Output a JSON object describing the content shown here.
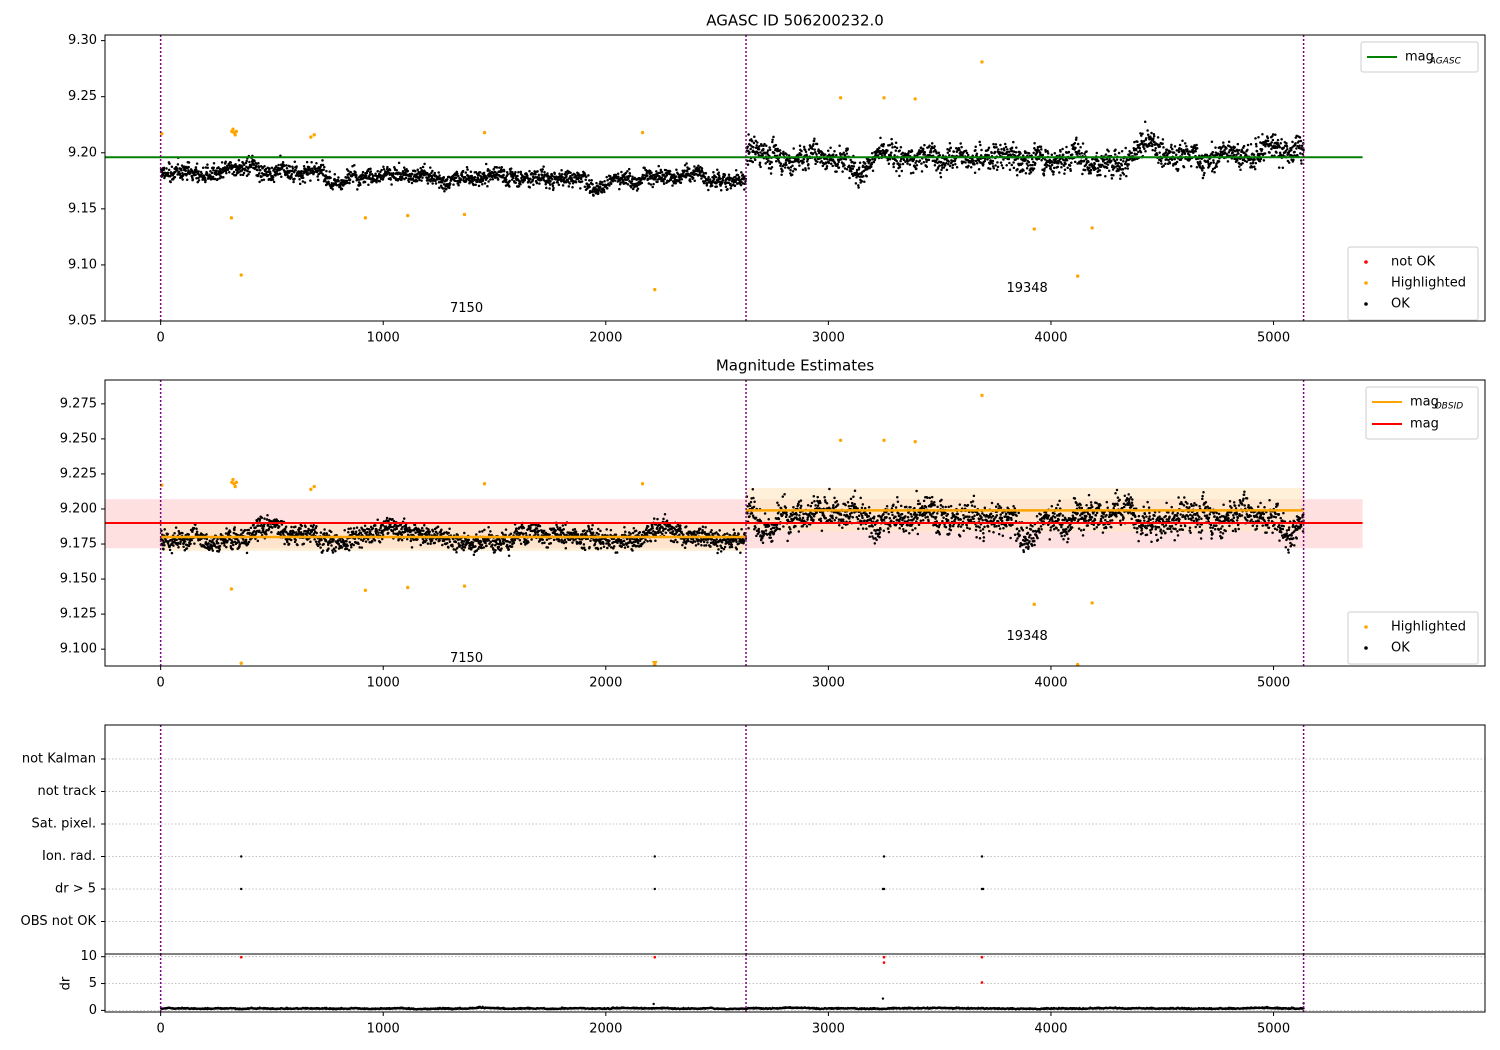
{
  "colors": {
    "agasc_line": "#008000",
    "obsid_line": "#ffa500",
    "mag_line": "#ff0000",
    "mag_band": "#ffcccc",
    "obsid_band": "#ffe6bf",
    "obs_boundary": "#800080",
    "ok": "#000000",
    "highlighted": "#ffa500",
    "not_ok": "#ff0000",
    "grid": "#b0b0b0"
  },
  "chart_data": [
    {
      "type": "scatter",
      "title": "AGASC ID 506200232.0",
      "xlim": [
        -250,
        5950
      ],
      "ylim": [
        9.05,
        9.305
      ],
      "x_ticks": [
        "0",
        "1000",
        "2000",
        "3000",
        "4000",
        "5000"
      ],
      "y_ticks": [
        "9.05",
        "9.10",
        "9.15",
        "9.20",
        "9.25",
        "9.30"
      ],
      "obs_boundaries": [
        0,
        2630,
        5135
      ],
      "observations": [
        {
          "label": "7150",
          "x_start": 0,
          "x_end": 2630,
          "label_x": 1300,
          "label_y": 9.061
        },
        {
          "label": "19348",
          "x_start": 2630,
          "x_end": 5135,
          "label_x": 3800,
          "label_y": 9.079
        }
      ],
      "segments": [
        {
          "x_start": 0,
          "x_end": 2630,
          "mean": 9.181,
          "spread": 0.011
        },
        {
          "x_start": 2630,
          "x_end": 5135,
          "mean": 9.199,
          "spread": 0.017
        }
      ],
      "reference_lines": [
        {
          "name": "mag_AGASC",
          "y": 9.196,
          "x_start": -250,
          "x_end": 5400
        }
      ],
      "highlighted_points": [
        {
          "x": 5,
          "y": 9.217
        },
        {
          "x": 320,
          "y": 9.219
        },
        {
          "x": 325,
          "y": 9.221
        },
        {
          "x": 330,
          "y": 9.218
        },
        {
          "x": 335,
          "y": 9.216
        },
        {
          "x": 340,
          "y": 9.219
        },
        {
          "x": 318,
          "y": 9.142
        },
        {
          "x": 362,
          "y": 9.091
        },
        {
          "x": 675,
          "y": 9.214
        },
        {
          "x": 690,
          "y": 9.216
        },
        {
          "x": 920,
          "y": 9.142
        },
        {
          "x": 1110,
          "y": 9.144
        },
        {
          "x": 1365,
          "y": 9.145
        },
        {
          "x": 1455,
          "y": 9.218
        },
        {
          "x": 2165,
          "y": 9.218
        },
        {
          "x": 2220,
          "y": 9.078
        },
        {
          "x": 3055,
          "y": 9.249
        },
        {
          "x": 3250,
          "y": 9.249
        },
        {
          "x": 3390,
          "y": 9.248
        },
        {
          "x": 3690,
          "y": 9.281
        },
        {
          "x": 3925,
          "y": 9.132
        },
        {
          "x": 4120,
          "y": 9.09
        },
        {
          "x": 4185,
          "y": 9.133
        }
      ],
      "not_ok_points": [],
      "legend_lines": [
        {
          "label": "mag",
          "sub": "AGASC",
          "color_key": "agasc_line"
        }
      ],
      "legend_markers": [
        {
          "label": "not OK",
          "color_key": "not_ok"
        },
        {
          "label": "Highlighted",
          "color_key": "highlighted"
        },
        {
          "label": "OK",
          "color_key": "ok"
        }
      ]
    },
    {
      "type": "scatter",
      "title": "Magnitude Estimates",
      "xlim": [
        -250,
        5950
      ],
      "ylim": [
        9.088,
        9.292
      ],
      "x_ticks": [
        "0",
        "1000",
        "2000",
        "3000",
        "4000",
        "5000"
      ],
      "y_ticks": [
        "9.100",
        "9.125",
        "9.150",
        "9.175",
        "9.200",
        "9.225",
        "9.250",
        "9.275"
      ],
      "obs_boundaries": [
        0,
        2630,
        5135
      ],
      "observations": [
        {
          "label": "7150",
          "x_start": 0,
          "x_end": 2630,
          "label_x": 1300,
          "label_y": 9.0935
        },
        {
          "label": "19348",
          "x_start": 2630,
          "x_end": 5135,
          "label_x": 3800,
          "label_y": 9.109
        }
      ],
      "segments": [
        {
          "x_start": 0,
          "x_end": 2630,
          "mean": 9.181,
          "spread": 0.011
        },
        {
          "x_start": 2630,
          "x_end": 5135,
          "mean": 9.199,
          "spread": 0.017
        }
      ],
      "mag_band": {
        "mean": 9.19,
        "low": 9.172,
        "high": 9.207,
        "x_start": -250,
        "x_end": 5400
      },
      "obsid_lines": [
        {
          "x_start": 0,
          "x_end": 2630,
          "y": 9.18,
          "low": 9.17,
          "high": 9.19
        },
        {
          "x_start": 2630,
          "x_end": 5135,
          "y": 9.199,
          "low": 9.184,
          "high": 9.215
        }
      ],
      "highlighted_points": [
        {
          "x": 5,
          "y": 9.217
        },
        {
          "x": 320,
          "y": 9.219
        },
        {
          "x": 325,
          "y": 9.221
        },
        {
          "x": 330,
          "y": 9.218
        },
        {
          "x": 335,
          "y": 9.216
        },
        {
          "x": 340,
          "y": 9.219
        },
        {
          "x": 318,
          "y": 9.143
        },
        {
          "x": 362,
          "y": 9.09
        },
        {
          "x": 675,
          "y": 9.214
        },
        {
          "x": 690,
          "y": 9.216
        },
        {
          "x": 920,
          "y": 9.142
        },
        {
          "x": 1110,
          "y": 9.144
        },
        {
          "x": 1365,
          "y": 9.145
        },
        {
          "x": 1455,
          "y": 9.218
        },
        {
          "x": 2165,
          "y": 9.218
        },
        {
          "x": 2220,
          "y": 9.089
        },
        {
          "x": 3055,
          "y": 9.249
        },
        {
          "x": 3250,
          "y": 9.249
        },
        {
          "x": 3390,
          "y": 9.248
        },
        {
          "x": 3690,
          "y": 9.281
        },
        {
          "x": 3925,
          "y": 9.132
        },
        {
          "x": 4120,
          "y": 9.089
        },
        {
          "x": 4185,
          "y": 9.133
        }
      ],
      "legend_lines": [
        {
          "label": "mag",
          "sub": "OBSID",
          "color_key": "obsid_line"
        },
        {
          "label": "mag",
          "sub": "",
          "color_key": "mag_line"
        }
      ],
      "legend_markers": [
        {
          "label": "Highlighted",
          "color_key": "highlighted"
        },
        {
          "label": "OK",
          "color_key": "ok"
        }
      ]
    },
    {
      "type": "scatter",
      "title": "",
      "xlim": [
        -250,
        5950
      ],
      "categories": [
        "not Kalman",
        "not track",
        "Sat. pixel.",
        "Ion. rad.",
        "dr > 5",
        "OBS not OK"
      ],
      "obs_boundaries": [
        0,
        2630,
        5135
      ],
      "flag_points": {
        "Ion. rad.": [
          362,
          2220,
          3250,
          3690
        ],
        "dr > 5": [
          362,
          2220,
          3245,
          3250,
          3690,
          3695
        ]
      }
    },
    {
      "type": "scatter",
      "title": "",
      "xlim": [
        -250,
        5950
      ],
      "ylim": [
        -0.3,
        10.5
      ],
      "ylabel": "dr",
      "x_ticks": [
        "0",
        "1000",
        "2000",
        "3000",
        "4000",
        "5000"
      ],
      "y_ticks": [
        "0",
        "5",
        "10"
      ],
      "obs_boundaries": [
        0,
        2630,
        5135
      ],
      "ok_baseline": {
        "mean": 0.3,
        "spread": 0.2
      },
      "not_ok_points": [
        {
          "x": 362,
          "y": 9.9
        },
        {
          "x": 2220,
          "y": 9.9
        },
        {
          "x": 3250,
          "y": 9.9
        },
        {
          "x": 3250,
          "y": 8.9
        },
        {
          "x": 3690,
          "y": 9.9
        },
        {
          "x": 3690,
          "y": 5.2
        }
      ],
      "extra_ok_points": [
        {
          "x": 2215,
          "y": 1.2
        },
        {
          "x": 3245,
          "y": 2.2
        },
        {
          "x": 5135,
          "y": 1.3
        }
      ]
    }
  ]
}
